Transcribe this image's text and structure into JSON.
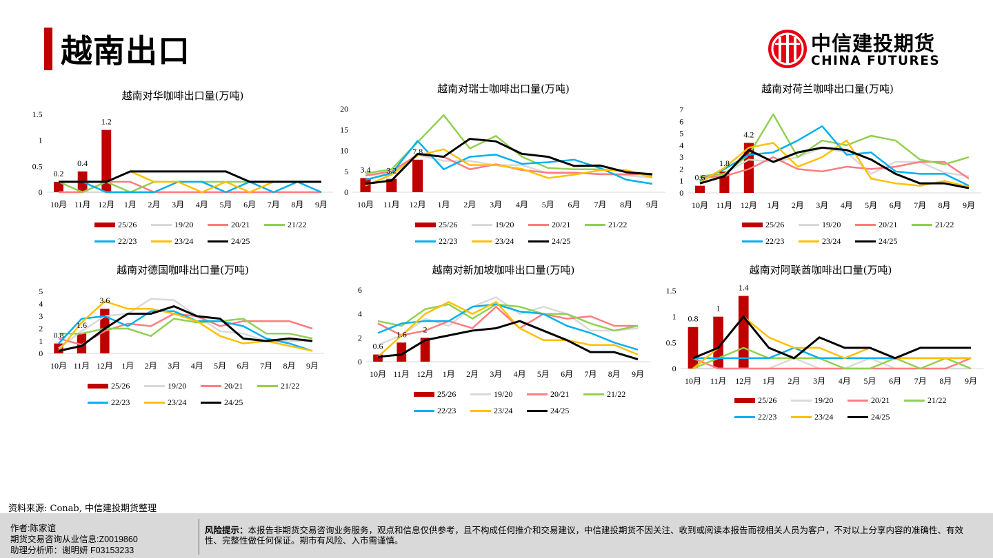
{
  "header": {
    "title": "越南出口",
    "logo_cn": "中信建投期货",
    "logo_en": "CHINA FUTURES"
  },
  "colors": {
    "accent": "#c00000",
    "series": {
      "25/26": "#c00000",
      "19/20": "#d9d9d9",
      "20/21": "#ff7c80",
      "21/22": "#92d050",
      "22/23": "#00b0f0",
      "23/24": "#ffc000",
      "24/25": "#000000"
    }
  },
  "legend_labels": [
    "25/26",
    "19/20",
    "20/21",
    "21/22",
    "22/23",
    "23/24",
    "24/25"
  ],
  "chart_data": [
    {
      "type": "bar+line",
      "title": "越南对华咖啡出口量(万吨)",
      "categories": [
        "10月",
        "11月",
        "12月",
        "1月",
        "2月",
        "3月",
        "4月",
        "5月",
        "6月",
        "7月",
        "8月",
        "9月"
      ],
      "ylim": [
        0,
        1.5
      ],
      "yticks": [
        "0",
        "0.5",
        "1",
        "1.5"
      ],
      "ytick_values": [
        0,
        0.5,
        1,
        1.5
      ],
      "bar": {
        "name": "25/26",
        "values": [
          0.2,
          0.4,
          1.2
        ],
        "labels": [
          "0.2",
          "0.4",
          "1.2"
        ]
      },
      "series": [
        {
          "name": "19/20",
          "values": [
            0,
            0,
            0,
            0,
            0,
            0,
            0,
            0,
            0,
            0,
            0,
            0
          ]
        },
        {
          "name": "20/21",
          "values": [
            0,
            0,
            0.2,
            0.2,
            0,
            0,
            0,
            0,
            0,
            0,
            0,
            0
          ]
        },
        {
          "name": "21/22",
          "values": [
            0.2,
            0,
            0.2,
            0,
            0.2,
            0.2,
            0.2,
            0.2,
            0.2,
            0.2,
            0.2,
            0.2
          ]
        },
        {
          "name": "22/23",
          "values": [
            0.2,
            0.2,
            0,
            0,
            0,
            0.2,
            0.2,
            0,
            0.2,
            0,
            0.2,
            0
          ]
        },
        {
          "name": "23/24",
          "values": [
            0.2,
            0.2,
            0.2,
            0.4,
            0.2,
            0.2,
            0,
            0.2,
            0,
            0.2,
            0.2,
            0.2
          ]
        },
        {
          "name": "24/25",
          "values": [
            0.2,
            0.2,
            0.2,
            0.4,
            0.4,
            0.4,
            0.4,
            0.4,
            0.2,
            0.2,
            0.2,
            0.2
          ]
        }
      ]
    },
    {
      "type": "bar+line",
      "title": "越南对瑞士咖啡出口量(万吨)",
      "categories": [
        "10月",
        "11月",
        "12月",
        "1月",
        "2月",
        "3月",
        "4月",
        "5月",
        "6月",
        "7月",
        "8月",
        "9月"
      ],
      "ylim": [
        0,
        20
      ],
      "yticks": [
        "0",
        "5",
        "10",
        "15",
        "20"
      ],
      "ytick_values": [
        0,
        5,
        10,
        15,
        20
      ],
      "bar": {
        "name": "25/26",
        "values": [
          3.4,
          3.2,
          7.8
        ],
        "labels": [
          "3.4",
          "3.2",
          "7.8"
        ]
      },
      "series": [
        {
          "name": "19/20",
          "values": [
            4,
            4.5,
            9,
            7.5,
            7.5,
            6.5,
            6.5,
            4.5,
            4.5,
            4.5,
            4,
            3.5
          ]
        },
        {
          "name": "20/21",
          "values": [
            4,
            5,
            9,
            8.5,
            5.5,
            6.7,
            5.3,
            4.7,
            4.7,
            4.3,
            4.3,
            4.3
          ]
        },
        {
          "name": "21/22",
          "values": [
            4.5,
            5.5,
            12,
            18.5,
            10.5,
            13.5,
            8.5,
            5.8,
            5.5,
            5.5,
            5,
            3.8
          ]
        },
        {
          "name": "22/23",
          "values": [
            3,
            4.5,
            12.3,
            5.5,
            8.5,
            9,
            6.8,
            7.2,
            7.8,
            5.8,
            3,
            2
          ]
        },
        {
          "name": "23/24",
          "values": [
            1.6,
            4.2,
            8.8,
            10.3,
            6.5,
            6.5,
            5.6,
            3.4,
            4.2,
            5.3,
            5.3,
            3.5
          ]
        },
        {
          "name": "24/25",
          "values": [
            2,
            2.8,
            9.2,
            8.5,
            12.8,
            12.2,
            9.2,
            8.5,
            6.3,
            6.4,
            4.8,
            4.3
          ]
        }
      ]
    },
    {
      "type": "bar+line",
      "title": "越南对荷兰咖啡出口量(万吨)",
      "categories": [
        "10月",
        "11月",
        "12月",
        "1月",
        "2月",
        "3月",
        "4月",
        "5月",
        "6月",
        "7月",
        "8月",
        "9月"
      ],
      "ylim": [
        0,
        7
      ],
      "yticks": [
        "0",
        "1",
        "2",
        "3",
        "4",
        "5",
        "6",
        "7"
      ],
      "ytick_values": [
        0,
        1,
        2,
        3,
        4,
        5,
        6,
        7
      ],
      "bar": {
        "name": "25/26",
        "values": [
          0.6,
          1.8,
          4.2
        ],
        "labels": [
          "0.6",
          "1.8",
          "4.2"
        ]
      },
      "series": [
        {
          "name": "19/20",
          "values": [
            1,
            1.6,
            2.8,
            2.6,
            3,
            3.8,
            3.4,
            1.6,
            2.6,
            2.6,
            1.7,
            1.4
          ]
        },
        {
          "name": "20/21",
          "values": [
            1.3,
            1.4,
            2,
            3,
            2,
            1.8,
            2.2,
            2,
            2.2,
            2.6,
            2.6,
            1.2
          ]
        },
        {
          "name": "21/22",
          "values": [
            1.4,
            1.6,
            3.2,
            6.6,
            3,
            4.4,
            4,
            4.8,
            4.4,
            2.8,
            2.4,
            3
          ]
        },
        {
          "name": "22/23",
          "values": [
            1,
            2,
            3.2,
            3.4,
            4.4,
            5.6,
            3.2,
            3.4,
            1.8,
            1.6,
            1.6,
            0.6
          ]
        },
        {
          "name": "23/24",
          "values": [
            0.9,
            2.1,
            3.8,
            4.2,
            2.2,
            3,
            4.4,
            1.2,
            0.8,
            0.6,
            1,
            0.5
          ]
        },
        {
          "name": "24/25",
          "values": [
            0.8,
            1.4,
            3.6,
            2.6,
            3.4,
            3.8,
            3.6,
            2.8,
            1.6,
            0.8,
            0.8,
            0.4
          ]
        }
      ]
    },
    {
      "type": "bar+line",
      "title": "越南对德国咖啡出口量(万吨)",
      "categories": [
        "10月",
        "11月",
        "12月",
        "1月",
        "2月",
        "3月",
        "4月",
        "5月",
        "6月",
        "7月",
        "8月",
        "9月"
      ],
      "ylim": [
        0,
        5
      ],
      "yticks": [
        "0",
        "1",
        "2",
        "3",
        "4",
        "5"
      ],
      "ytick_values": [
        0,
        1,
        2,
        3,
        4,
        5
      ],
      "bar": {
        "name": "25/26",
        "values": [
          0.8,
          1.6,
          3.6
        ],
        "labels": [
          "0.8",
          "1.6",
          "3.6"
        ]
      },
      "series": [
        {
          "name": "19/20",
          "values": [
            0.4,
            1.8,
            3,
            3.2,
            4.4,
            4.3,
            3,
            1.8,
            1.6,
            1,
            1,
            1
          ]
        },
        {
          "name": "20/21",
          "values": [
            1.2,
            0.7,
            1.8,
            2.4,
            2.2,
            3.2,
            3,
            2.2,
            2.6,
            2.6,
            2.6,
            2
          ]
        },
        {
          "name": "21/22",
          "values": [
            1.6,
            1.6,
            2,
            2,
            1.4,
            2.8,
            2.5,
            2.6,
            2.8,
            1.6,
            1.6,
            1.2
          ]
        },
        {
          "name": "22/23",
          "values": [
            0.8,
            2.8,
            3,
            2.2,
            3.4,
            3.4,
            2.6,
            2.6,
            2.2,
            1.2,
            0.8,
            0.2
          ]
        },
        {
          "name": "23/24",
          "values": [
            0.2,
            2.5,
            4.2,
            3.6,
            3.6,
            3.2,
            2.6,
            1.4,
            0.8,
            1,
            0.6,
            0.2
          ]
        },
        {
          "name": "24/25",
          "values": [
            0.2,
            0.6,
            2,
            3.2,
            3.2,
            3.8,
            3,
            2.8,
            1.2,
            1,
            1.2,
            1
          ]
        }
      ]
    },
    {
      "type": "bar+line",
      "title": "越南对新加坡咖啡出口量(万吨)",
      "categories": [
        "10月",
        "11月",
        "12月",
        "1月",
        "2月",
        "3月",
        "4月",
        "5月",
        "6月",
        "7月",
        "8月",
        "9月"
      ],
      "ylim": [
        0,
        6
      ],
      "yticks": [
        "0",
        "2",
        "4",
        "6"
      ],
      "ytick_values": [
        0,
        2,
        4,
        6
      ],
      "bar": {
        "name": "25/26",
        "values": [
          0.6,
          1.6,
          2
        ],
        "labels": [
          "0.6",
          "1.6",
          "2"
        ]
      },
      "series": [
        {
          "name": "19/20",
          "values": [
            1.4,
            2.2,
            3.6,
            3,
            4.6,
            5.4,
            4,
            4.6,
            4,
            2.6,
            2.6,
            2.8
          ]
        },
        {
          "name": "20/21",
          "values": [
            3.2,
            2.2,
            2.6,
            3.4,
            2.8,
            4.6,
            2.8,
            4,
            3.6,
            3.8,
            3,
            3
          ]
        },
        {
          "name": "21/22",
          "values": [
            3.4,
            3,
            4.4,
            4.8,
            3.6,
            4.8,
            4.6,
            4,
            4,
            3.2,
            2.6,
            3
          ]
        },
        {
          "name": "22/23",
          "values": [
            2.4,
            3.2,
            3.4,
            3.4,
            4.6,
            4.8,
            4.2,
            4,
            3,
            2.4,
            1.6,
            1
          ]
        },
        {
          "name": "23/24",
          "values": [
            0.4,
            2.2,
            4,
            5,
            4,
            5,
            2.8,
            1.8,
            1.8,
            1.4,
            1.4,
            0.6
          ]
        },
        {
          "name": "24/25",
          "values": [
            0.4,
            0.6,
            1.8,
            2.2,
            2.6,
            2.8,
            3.4,
            2.6,
            1.8,
            0.8,
            0.8,
            0.2
          ]
        }
      ]
    },
    {
      "type": "bar+line",
      "title": "越南对阿联酋咖啡出口量(万吨)",
      "categories": [
        "10月",
        "11月",
        "12月",
        "1月",
        "2月",
        "3月",
        "4月",
        "5月",
        "6月",
        "7月",
        "8月",
        "9月"
      ],
      "ylim": [
        0,
        1.5
      ],
      "yticks": [
        "0",
        "0.5",
        "1",
        "1.5"
      ],
      "ytick_values": [
        0,
        0.5,
        1,
        1.5
      ],
      "bar": {
        "name": "25/26",
        "values": [
          0.8,
          1,
          1.4
        ],
        "labels": [
          "0.8",
          "1",
          "1.4"
        ]
      },
      "series": [
        {
          "name": "19/20",
          "values": [
            0,
            0,
            0,
            0,
            0.2,
            0,
            0,
            0.2,
            0,
            0,
            0,
            0
          ]
        },
        {
          "name": "20/21",
          "values": [
            0.2,
            0,
            0,
            0,
            0,
            0,
            0,
            0,
            0,
            0,
            0,
            0.2
          ]
        },
        {
          "name": "21/22",
          "values": [
            0,
            0.2,
            0.4,
            0.2,
            0.2,
            0.2,
            0,
            0,
            0.2,
            0,
            0.2,
            0
          ]
        },
        {
          "name": "22/23",
          "values": [
            0.2,
            0.2,
            0.2,
            0.2,
            0.4,
            0.2,
            0.2,
            0.2,
            0.2,
            0.2,
            0.2,
            0.2
          ]
        },
        {
          "name": "23/24",
          "values": [
            0,
            0.4,
            1,
            0.6,
            0.4,
            0.4,
            0.2,
            0.4,
            0.2,
            0.2,
            0.2,
            0.2
          ]
        },
        {
          "name": "24/25",
          "values": [
            0.2,
            0.4,
            1,
            0.4,
            0.2,
            0.6,
            0.4,
            0.4,
            0.2,
            0.4,
            0.4,
            0.4
          ]
        }
      ]
    }
  ],
  "source": "资料来源: Conab, 中信建投期货整理",
  "footer": {
    "author": "作者:陈家谊",
    "license": "期货交易咨询从业信息:Z0019860",
    "assistant": "助理分析师：谢明妍 F03153233",
    "risk_label": "风险提示：",
    "risk_text": "本报告非期货交易咨询业务服务，观点和信息仅供参考，且不构成任何推介和交易建议，中信建投期货不因关注、收到或阅读本报告而视相关人员为客户，不对以上分享内容的准确性、有效性、完整性做任何保证。期市有风险、入市需谨慎。"
  }
}
